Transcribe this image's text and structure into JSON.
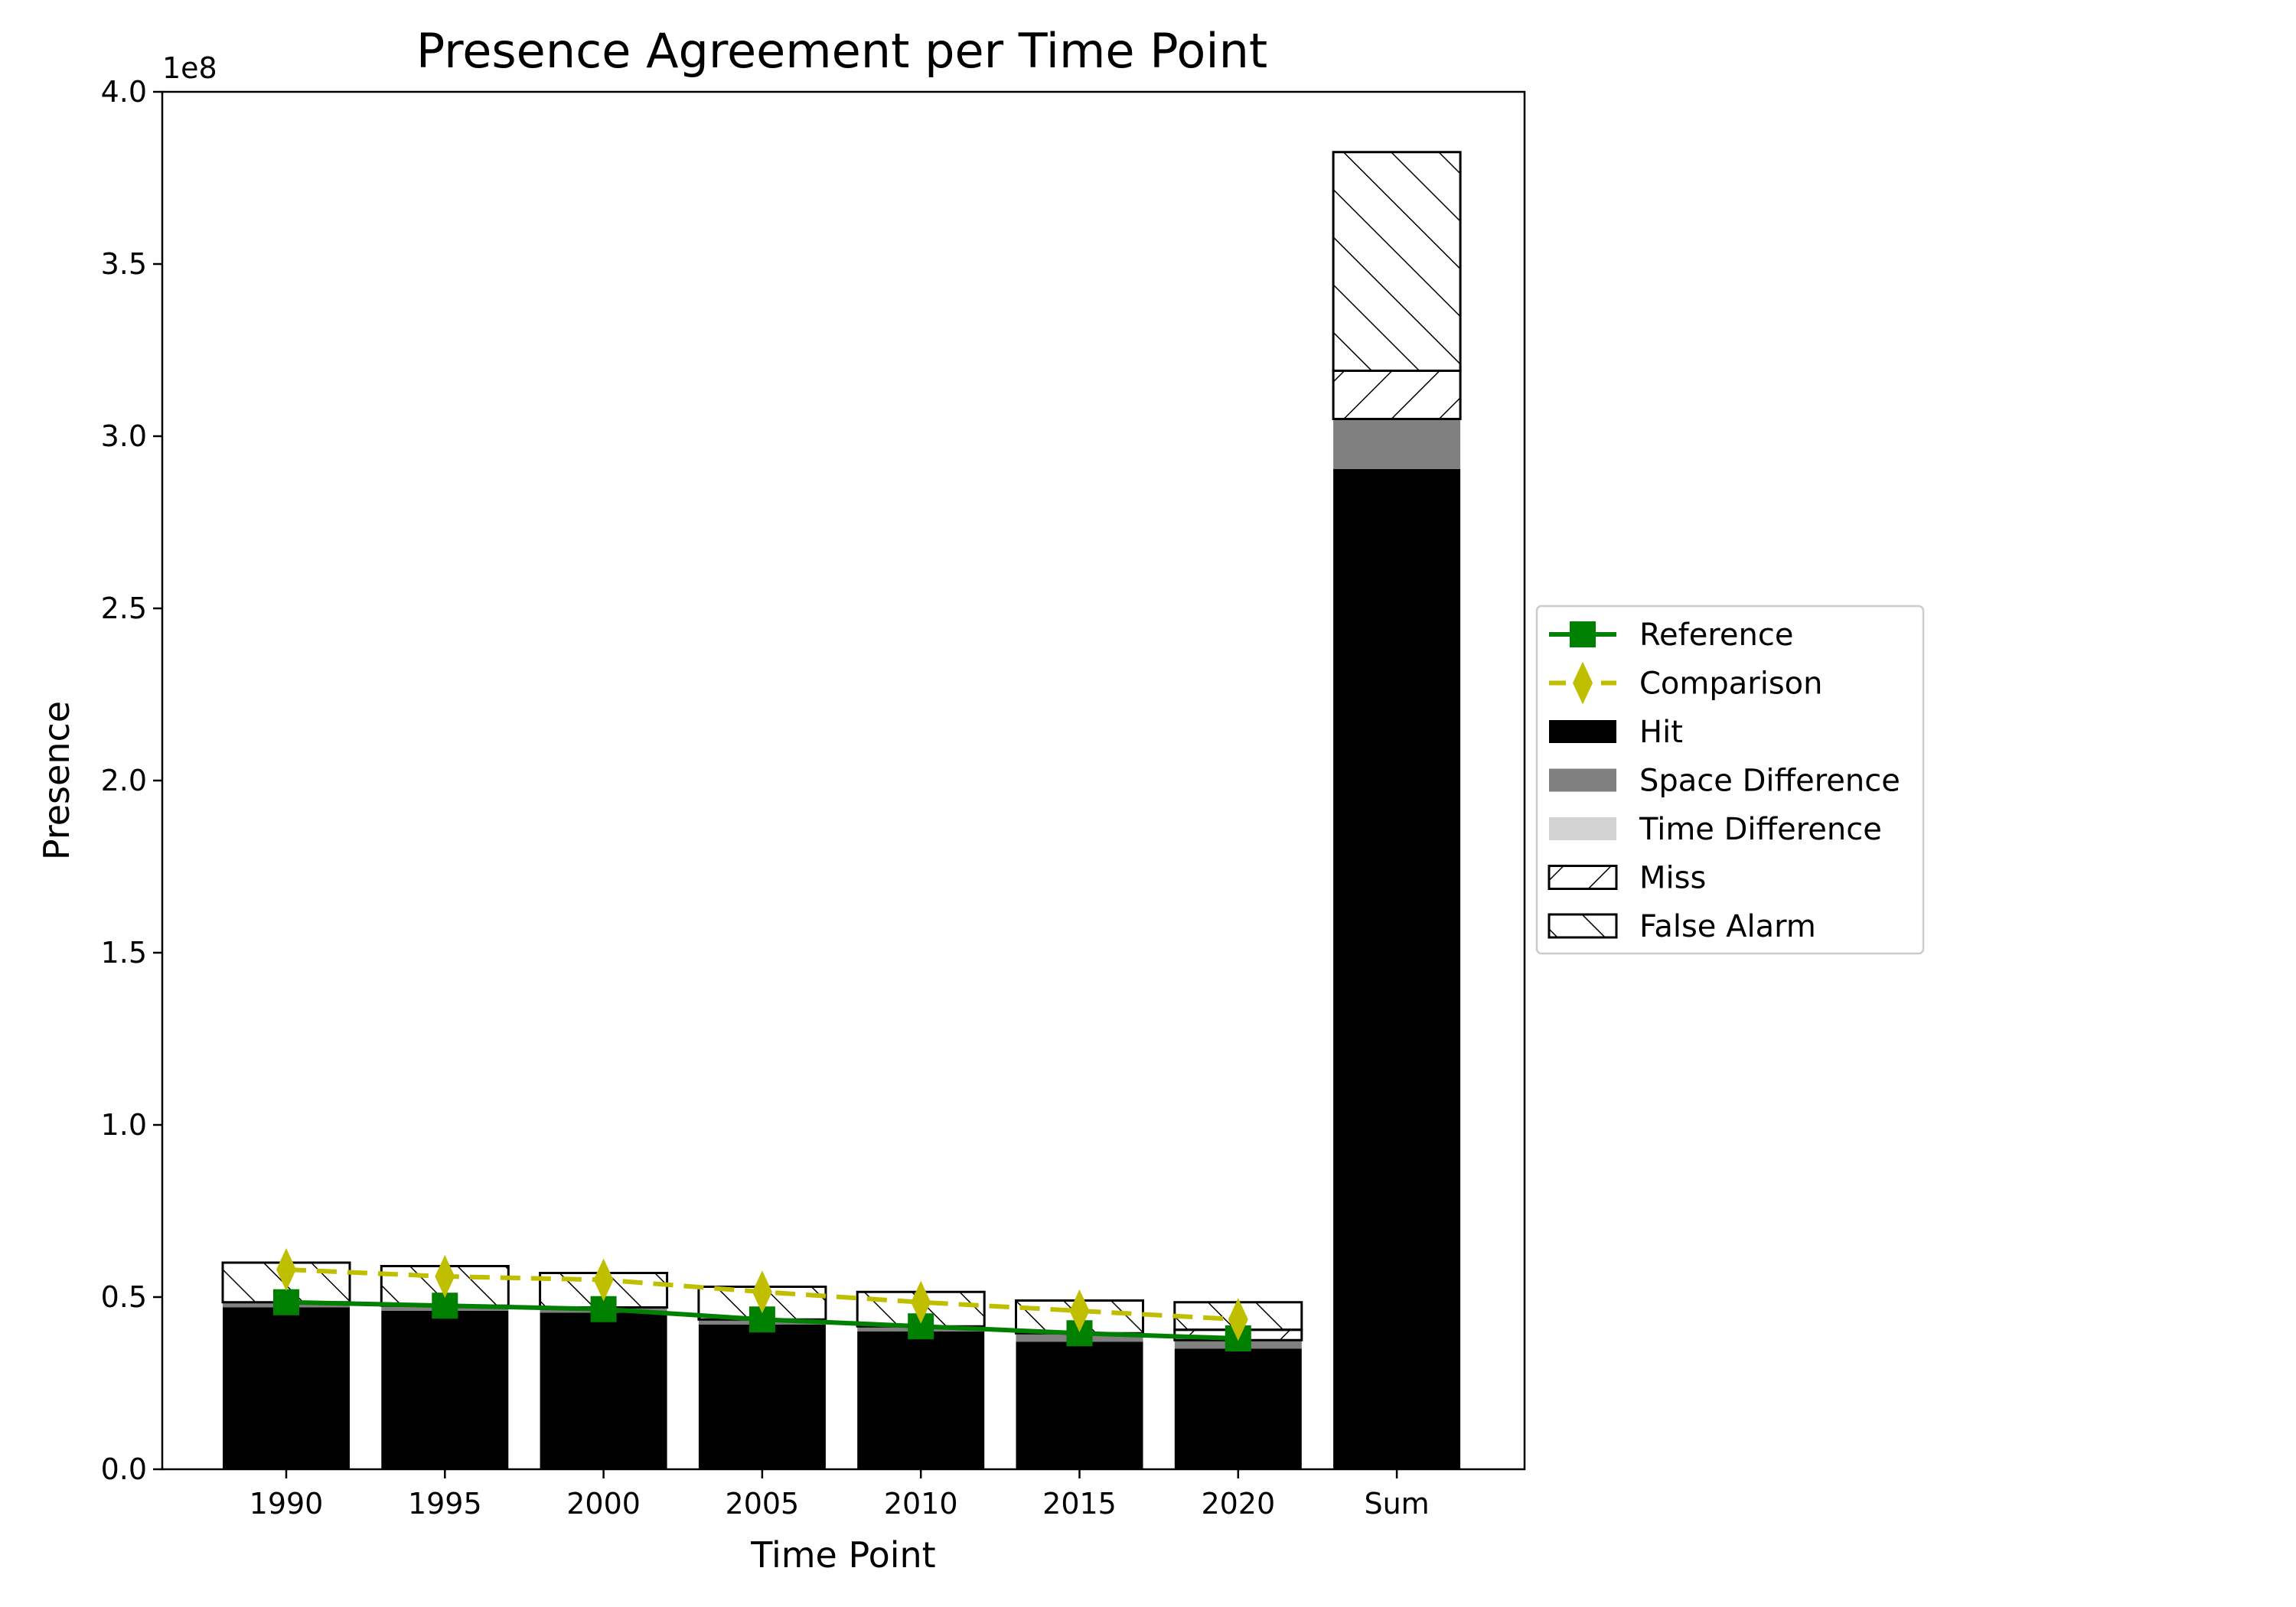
{
  "chart_data": {
    "type": "bar",
    "title": "Presence Agreement per Time Point",
    "xlabel": "Time Point",
    "ylabel": "Presence",
    "y_offset_label": "1e8",
    "ylim": [
      0,
      400000000.0
    ],
    "y_ticks": [
      0.0,
      0.5,
      1.0,
      1.5,
      2.0,
      2.5,
      3.0,
      3.5,
      4.0
    ],
    "y_tick_labels": [
      "0.0",
      "0.5",
      "1.0",
      "1.5",
      "2.0",
      "2.5",
      "3.0",
      "3.5",
      "4.0"
    ],
    "categories": [
      "1990",
      "1995",
      "2000",
      "2005",
      "2010",
      "2015",
      "2020",
      "Sum"
    ],
    "stacked_series": [
      {
        "name": "Hit",
        "color": "#000000",
        "hatch": "none",
        "values": [
          47000000,
          46000000,
          45500000,
          42000000,
          40000000,
          37000000,
          35000000,
          290500000
        ]
      },
      {
        "name": "Space Difference",
        "color": "#808080",
        "hatch": "none",
        "values": [
          1500000,
          1500000,
          1500000,
          1500000,
          1500000,
          2500000,
          2500000,
          14500000
        ]
      },
      {
        "name": "Time Difference",
        "color": "#d3d3d3",
        "hatch": "none",
        "values": [
          0,
          0,
          0,
          0,
          0,
          0,
          0,
          0
        ]
      },
      {
        "name": "Miss",
        "color": "#ffffff",
        "hatch": "forward",
        "values": [
          0,
          0,
          0,
          0,
          0,
          0,
          3000000,
          14000000
        ]
      },
      {
        "name": "False Alarm",
        "color": "#ffffff",
        "hatch": "backward",
        "values": [
          11500000,
          11500000,
          10000000,
          9500000,
          10000000,
          9500000,
          8000000,
          63500000
        ]
      }
    ],
    "line_series": [
      {
        "name": "Reference",
        "color": "#008000",
        "marker": "square",
        "style": "solid",
        "categories": [
          "1990",
          "1995",
          "2000",
          "2005",
          "2010",
          "2015",
          "2020"
        ],
        "values": [
          48500000,
          47500000,
          46500000,
          43500000,
          41500000,
          39500000,
          38000000
        ]
      },
      {
        "name": "Comparison",
        "color": "#bfbf00",
        "marker": "diamond",
        "style": "dashed",
        "categories": [
          "1990",
          "1995",
          "2000",
          "2005",
          "2010",
          "2015",
          "2020"
        ],
        "values": [
          58000000,
          56000000,
          55000000,
          51500000,
          48500000,
          46000000,
          43500000
        ]
      }
    ],
    "legend": {
      "placement": "right",
      "entries": [
        "Reference",
        "Comparison",
        "Hit",
        "Space Difference",
        "Time Difference",
        "Miss",
        "False Alarm"
      ]
    }
  }
}
